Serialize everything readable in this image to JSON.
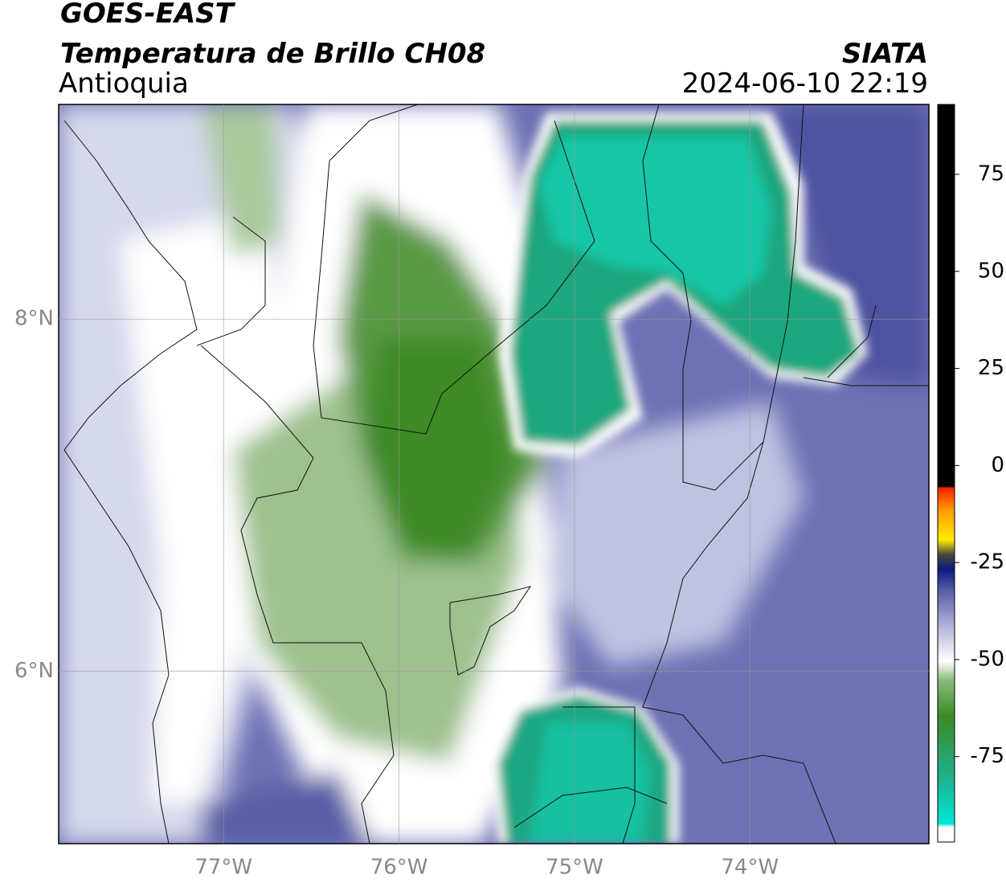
{
  "chart_data": {
    "type": "map",
    "title": "GOES-EAST",
    "subtitle": "Temperatura de Brillo CH08",
    "region": "Antioquia",
    "source": "SIATA",
    "timestamp": "2024-06-10 22:19",
    "xlim": [
      -77.94,
      -72.98
    ],
    "ylim": [
      5.02,
      9.22
    ],
    "xticks": [
      {
        "value": -77,
        "label": "77°W"
      },
      {
        "value": -76,
        "label": "76°W"
      },
      {
        "value": -75,
        "label": "75°W"
      },
      {
        "value": -74,
        "label": "74°W"
      }
    ],
    "yticks": [
      {
        "value": 6,
        "label": "6°N"
      },
      {
        "value": 8,
        "label": "8°N"
      }
    ],
    "grid": true,
    "colorbar": {
      "lim": [
        -97,
        93
      ],
      "ticks": [
        -75,
        -50,
        -25,
        0,
        25,
        50,
        75
      ]
    }
  }
}
